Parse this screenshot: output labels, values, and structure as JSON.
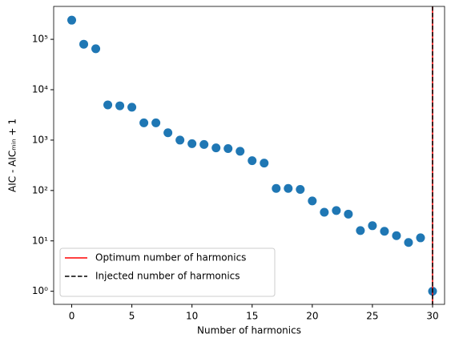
{
  "chart_data": {
    "type": "scatter",
    "log_y": true,
    "x_label": "Number of harmonics",
    "y_label": "AIC - AICₘᵢₙ + 1",
    "x": [
      0,
      1,
      2,
      3,
      4,
      5,
      6,
      7,
      8,
      9,
      10,
      11,
      12,
      13,
      14,
      15,
      16,
      17,
      18,
      19,
      20,
      21,
      22,
      23,
      24,
      25,
      26,
      27,
      28,
      29,
      30
    ],
    "series": [
      {
        "color": "#1f77b4",
        "values": [
          240000,
          80000,
          65000,
          5000,
          4800,
          4500,
          2200,
          2200,
          1400,
          1000,
          850,
          820,
          700,
          680,
          600,
          390,
          350,
          110,
          110,
          105,
          62,
          37,
          40,
          34,
          16,
          20,
          15.5,
          12.7,
          9.3,
          11.5,
          1
        ]
      }
    ],
    "vlines": [
      {
        "x": 30,
        "name": "Optimum number of harmonics",
        "color": "#ff0000",
        "dashed": false
      },
      {
        "x": 30,
        "name": "Injected number of harmonics",
        "color": "#000000",
        "dashed": true
      }
    ],
    "legend": "lower left",
    "xlim": [
      -1.5,
      31
    ],
    "xticks": [
      0,
      5,
      10,
      15,
      20,
      25,
      30
    ],
    "ylim": [
      0.55,
      450000
    ],
    "yticks": [
      {
        "value": 1,
        "label": "10⁰"
      },
      {
        "value": 10,
        "label": "10¹"
      },
      {
        "value": 100,
        "label": "10²"
      },
      {
        "value": 1000,
        "label": "10³"
      },
      {
        "value": 10000,
        "label": "10⁴"
      },
      {
        "value": 100000,
        "label": "10⁵"
      }
    ]
  }
}
